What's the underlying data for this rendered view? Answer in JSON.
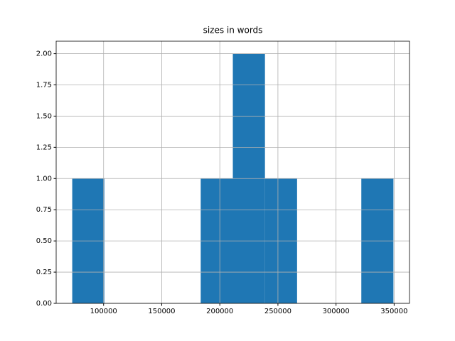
{
  "chart_data": {
    "type": "histogram",
    "title": "sizes in words",
    "bins": [
      73000,
      100640,
      128280,
      155920,
      183560,
      211200,
      238840,
      266480,
      294120,
      321760,
      349400
    ],
    "counts": [
      1,
      0,
      0,
      0,
      1,
      2,
      1,
      0,
      0,
      1
    ],
    "color": "#1f77b4",
    "xlim": [
      59180,
      363220
    ],
    "xticks": [
      100000,
      150000,
      200000,
      250000,
      300000,
      350000
    ],
    "ylim": [
      0,
      2.1
    ],
    "yticks": [
      {
        "value": 0,
        "label": "0.00"
      },
      {
        "value": 0.25,
        "label": "0.25"
      },
      {
        "value": 0.5,
        "label": "0.50"
      },
      {
        "value": 0.75,
        "label": "0.75"
      },
      {
        "value": 1,
        "label": "1.00"
      },
      {
        "value": 1.25,
        "label": "1.25"
      },
      {
        "value": 1.5,
        "label": "1.50"
      },
      {
        "value": 1.75,
        "label": "1.75"
      },
      {
        "value": 2,
        "label": "2.00"
      }
    ],
    "grid": true
  }
}
